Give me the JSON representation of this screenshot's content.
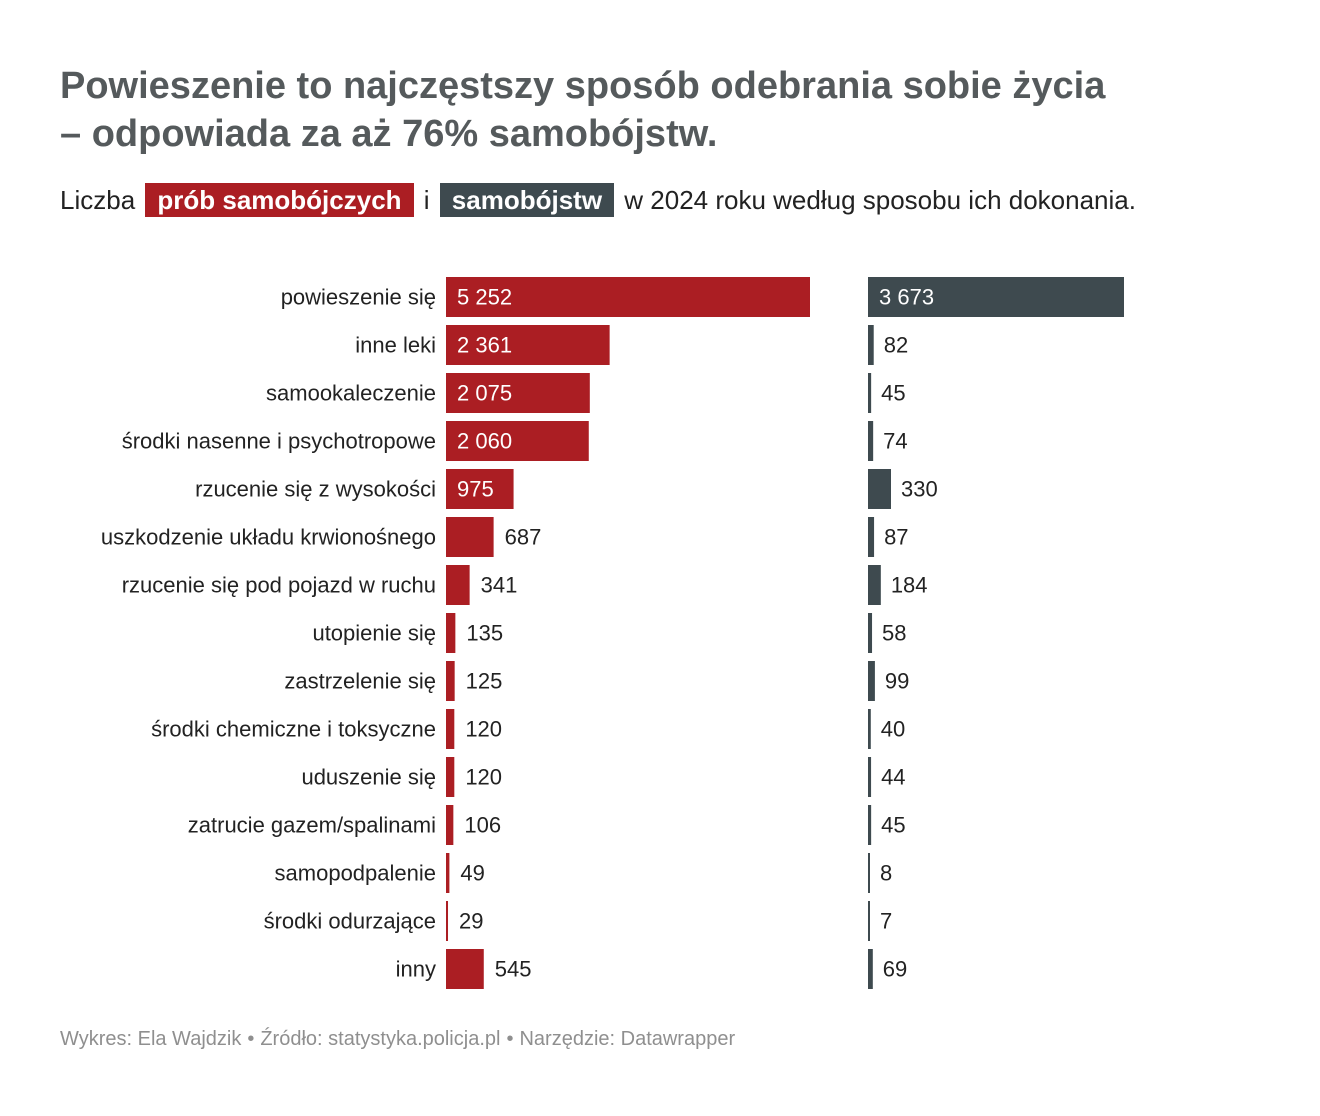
{
  "title_line1": "Powieszenie to najczęstszy sposób odebrania sobie życia",
  "title_line2": "– odpowiada za aż 76% samobójstw.",
  "subtitle": {
    "prefix": "Liczba",
    "chip_attempts": "prób samobójczych",
    "middle": "i",
    "chip_suicides": "samobójstw",
    "suffix": "w 2024 roku według sposobu ich dokonania."
  },
  "footer": {
    "author": "Wykres: Ela Wajdzik",
    "source": "Źródło: statystyka.policja.pl",
    "tool": "Narzędzie: Datawrapper",
    "separator": "•"
  },
  "colors": {
    "attempts": "#ab1e23",
    "suicides": "#3e4a4f",
    "title": "#555a5c",
    "text": "#222222",
    "footer": "#8f8f8f"
  },
  "chart_data": {
    "type": "bar",
    "orientation": "horizontal",
    "categories": [
      "powieszenie się",
      "inne leki",
      "samookaleczenie",
      "środki nasenne i psychotropowe",
      "rzucenie się z wysokości",
      "uszkodzenie układu krwionośnego",
      "rzucenie się pod pojazd w ruchu",
      "utopienie się",
      "zastrzelenie się",
      "środki chemiczne i toksyczne",
      "uduszenie się",
      "zatrucie gazem/spalinami",
      "samopodpalenie",
      "środki odurzające",
      "inny"
    ],
    "series": [
      {
        "name": "prób samobójczych",
        "values": [
          5252,
          2361,
          2075,
          2060,
          975,
          687,
          341,
          135,
          125,
          120,
          120,
          106,
          49,
          29,
          545
        ],
        "labels": [
          "5 252",
          "2 361",
          "2 075",
          "2 060",
          "975",
          "687",
          "341",
          "135",
          "125",
          "120",
          "120",
          "106",
          "49",
          "29",
          "545"
        ]
      },
      {
        "name": "samobójstw",
        "values": [
          3673,
          82,
          45,
          74,
          330,
          87,
          184,
          58,
          99,
          40,
          44,
          45,
          8,
          7,
          69
        ],
        "labels": [
          "3 673",
          "82",
          "45",
          "74",
          "330",
          "87",
          "184",
          "58",
          "99",
          "40",
          "44",
          "45",
          "8",
          "7",
          "69"
        ]
      }
    ],
    "grid": false,
    "legend": "in subtitle"
  }
}
